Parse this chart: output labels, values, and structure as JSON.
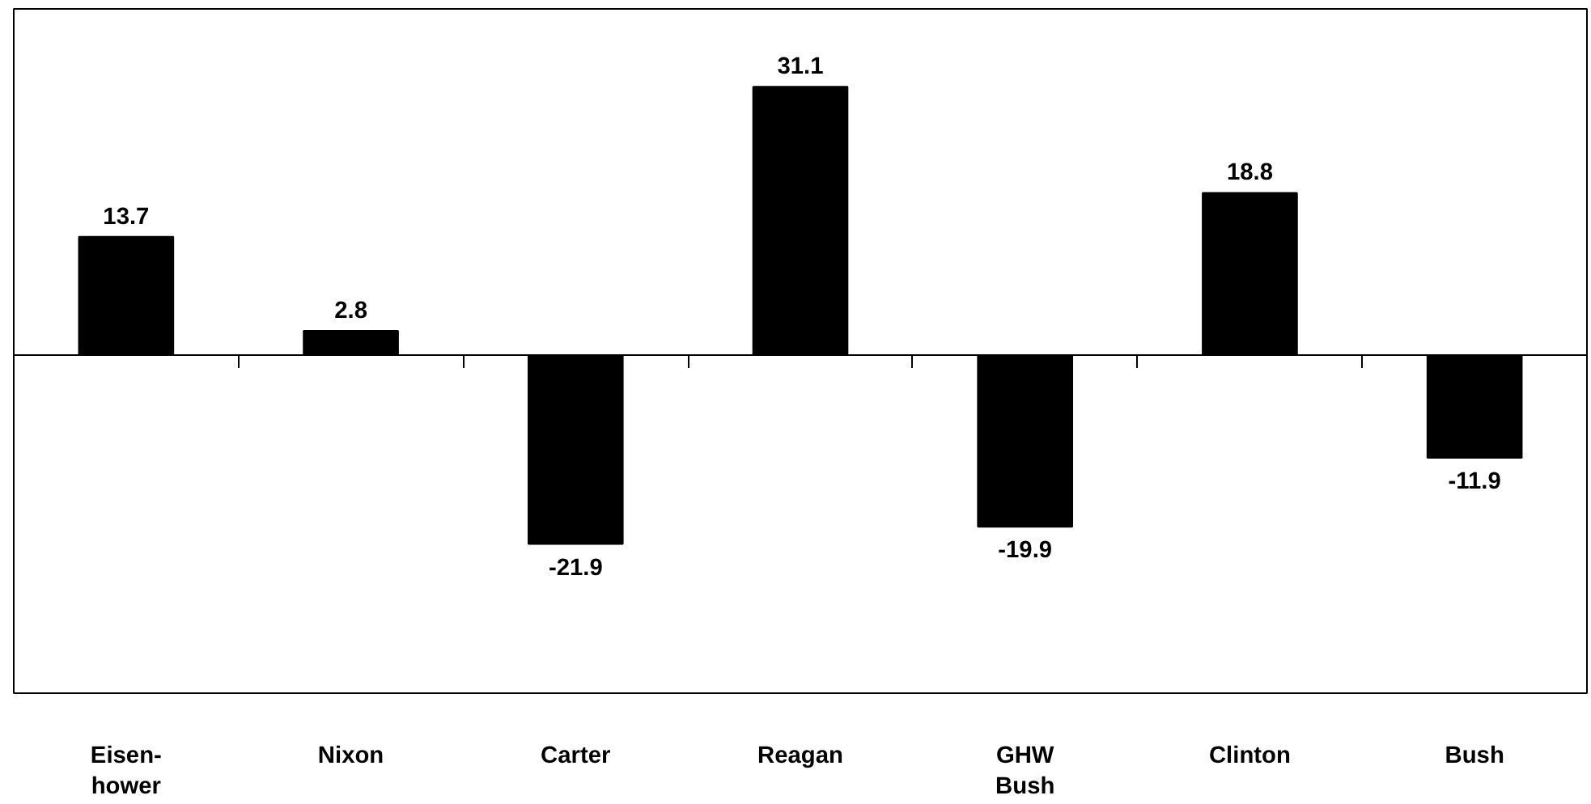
{
  "chart_data": {
    "type": "bar",
    "categories": [
      "Eisen-\nhower",
      "Nixon",
      "Carter",
      "Reagan",
      "GHW\nBush",
      "Clinton",
      "Bush"
    ],
    "values": [
      13.7,
      2.8,
      -21.9,
      31.1,
      -19.9,
      18.8,
      -11.9
    ],
    "color": "#000000",
    "data_labels": true,
    "grid": false
  }
}
